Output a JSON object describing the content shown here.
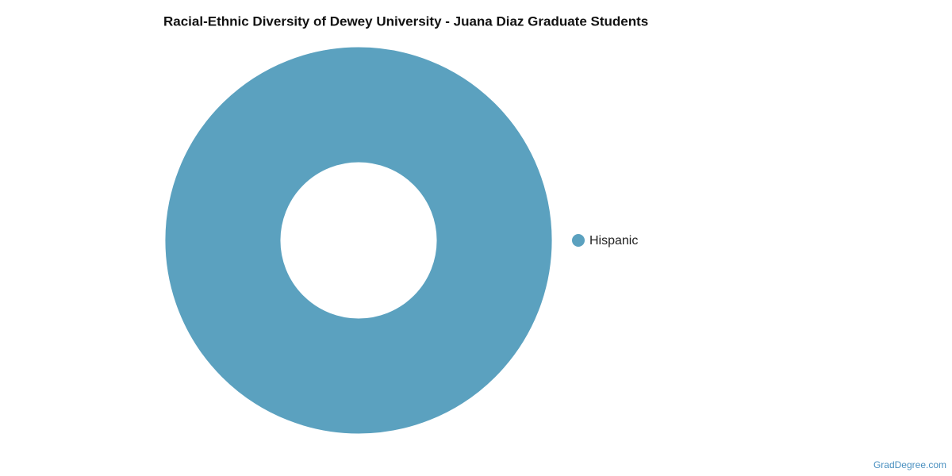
{
  "chart_data": {
    "type": "pie",
    "title": "Racial-Ethnic Diversity of Dewey University - Juana Diaz Graduate Students",
    "categories": [
      "Hispanic"
    ],
    "values": [
      100
    ],
    "colors": [
      "#5ba1bf"
    ],
    "donut": true,
    "legend": "right"
  },
  "watermark": "GradDegree.com"
}
